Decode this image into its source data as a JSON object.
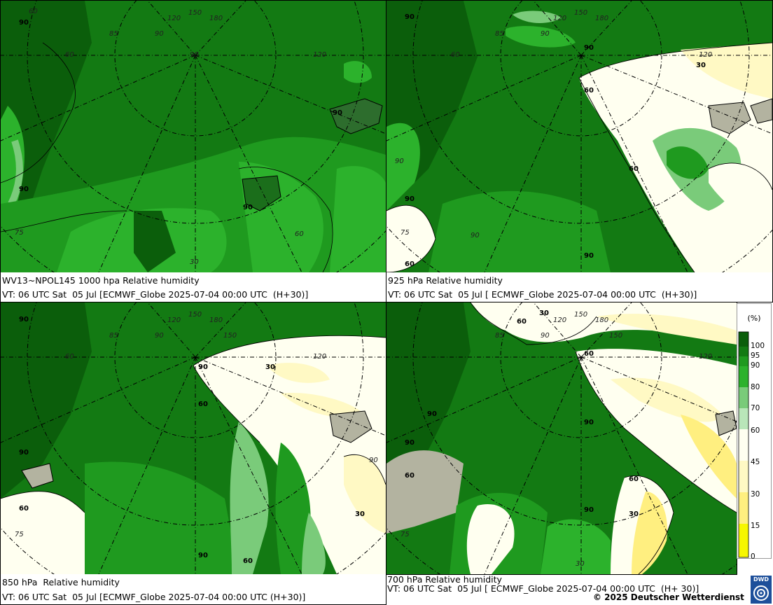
{
  "panels": [
    {
      "id": "p1000",
      "caption_line1": "WV13~NPOL145 1000 hpa Relative humidity",
      "caption_line2": "VT: 06 UTC Sat  05 Jul [ECMWF_Globe 2025-07-04 00:00 UTC  (H+30)]",
      "contour_labels": [
        "90",
        "90",
        "90",
        "90"
      ]
    },
    {
      "id": "p925",
      "caption_line1": "925 hPa Relative humidity",
      "caption_line2": "VT: 06 UTC Sat  05 Jul [ ECMWF_Globe 2025-07-04 00:00 UTC  (H+30)]",
      "contour_labels": [
        "90",
        "90",
        "30",
        "60",
        "60",
        "90",
        "90",
        "60"
      ]
    },
    {
      "id": "p850",
      "caption_line1": "850 hPa  Relative humidity",
      "caption_line2": "VT: 06 UTC Sat  05 Jul [ECMWF_Globe 2025-07-04 00:00 UTC (H+30)]",
      "contour_labels": [
        "90",
        "90",
        "30",
        "60",
        "90",
        "60",
        "30",
        "90",
        "60"
      ]
    },
    {
      "id": "p700",
      "caption_line1": "700 hPa Relative humidity",
      "caption_line2": "VT: 06 UTC Sat  05 Jul [ ECMWF_Globe 2025-07-04 00:00 UTC  (H+ 30)]",
      "contour_labels": [
        "30",
        "60",
        "60",
        "90",
        "90",
        "90",
        "60",
        "60",
        "90",
        "30"
      ]
    }
  ],
  "grid_labels": [
    "120",
    "150",
    "180",
    "90",
    "85",
    "60",
    "120",
    "90",
    "75",
    "30",
    "60"
  ],
  "legend": {
    "unit": "(%)",
    "ticks": [
      "100",
      "95",
      "90",
      "80",
      "70",
      "60",
      "45",
      "30",
      "15",
      "0"
    ],
    "colors": [
      "#0b5e0b",
      "#137a13",
      "#1f9a1f",
      "#2cb22c",
      "#7acb7a",
      "#b9e6b9",
      "#fffff0",
      "#fff9c4",
      "#ffef80",
      "#f7f700"
    ]
  },
  "copyright": "© 2025 Deutscher Wetterdienst",
  "logo_text": "DWD"
}
